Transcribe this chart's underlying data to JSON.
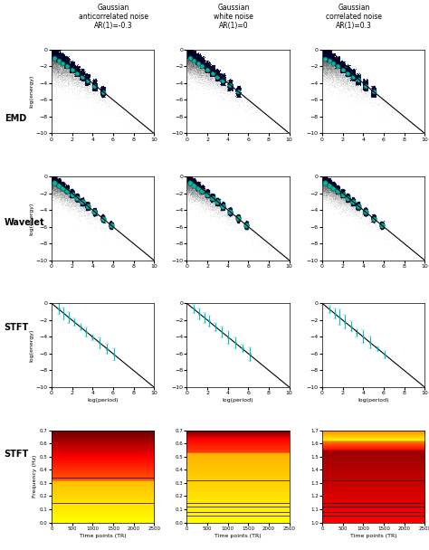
{
  "col_titles": [
    "Gaussian\nanticorrelated noise\nAR(1)=-0.3",
    "Gaussian\nwhite noise\nAR(1)=0",
    "Gaussian\ncorrelated noise\nAR(1)=0.3"
  ],
  "row_labels": [
    "EMD",
    "Wavelet",
    "STFT",
    "STFT"
  ],
  "scatter_xlim": [
    0,
    10
  ],
  "scatter_ylim": [
    -10,
    0
  ],
  "scatter_xticks": [
    0,
    2,
    4,
    6,
    8,
    10
  ],
  "scatter_yticks": [
    0,
    -2,
    -4,
    -6,
    -8,
    -10
  ],
  "scatter_xlabel": "log(period)",
  "scatter_ylabel": "log(energy)",
  "heatmap_xlim": [
    0,
    2500
  ],
  "heatmap_xticks": [
    0,
    500,
    1000,
    1500,
    2000,
    2500
  ],
  "heatmap_xlabel": "Time points (TR)",
  "heatmap_ylabel": "Frequency (Hz)",
  "heatmap1_ylim": [
    0,
    0.7
  ],
  "heatmap2_ylim": [
    0,
    0.7
  ],
  "heatmap3_ylim": [
    1.0,
    1.7
  ],
  "heatmap1_yticks": [
    0.0,
    0.1,
    0.2,
    0.3,
    0.4,
    0.5,
    0.6,
    0.7
  ],
  "heatmap2_yticks": [
    0.0,
    0.1,
    0.2,
    0.3,
    0.4,
    0.5,
    0.6,
    0.7
  ],
  "heatmap3_yticks": [
    1.0,
    1.1,
    1.2,
    1.3,
    1.4,
    1.5,
    1.6,
    1.7
  ],
  "scatter_point_color": "#000000",
  "scatter_cyan_color": "#00CCAA",
  "stft_cyan_color": "#00BBBB",
  "ar_params": [
    -0.3,
    0.0,
    0.3
  ],
  "bg_color": "#ffffff",
  "heatmap_lines1": [
    0.15,
    0.34
  ],
  "heatmap_lines2": [
    0.05,
    0.08,
    0.12,
    0.15,
    0.32
  ],
  "heatmap_lines3": [
    1.05,
    1.08,
    1.12,
    1.15,
    1.32
  ]
}
